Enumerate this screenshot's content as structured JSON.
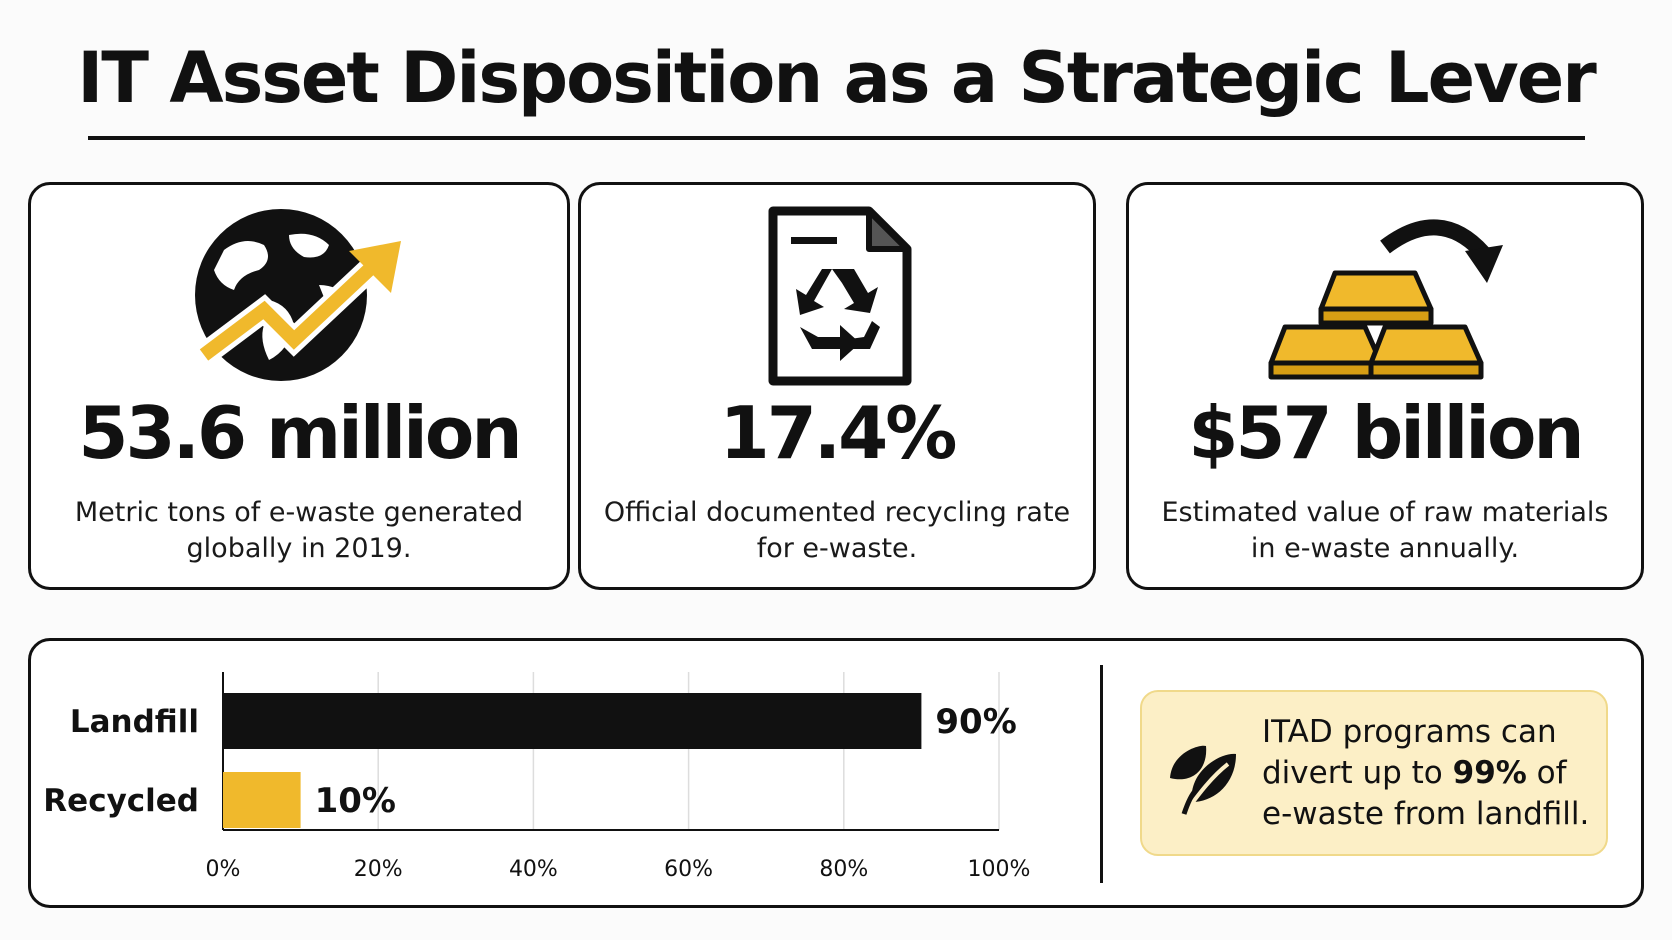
{
  "title": "IT Asset Disposition as a Strategic Lever",
  "colors": {
    "accent": "#f0b92c",
    "dark": "#111111",
    "callout_bg": "#fcefc6"
  },
  "cards": [
    {
      "icon": "globe-rising-arrow-icon",
      "stat": "53.6 million",
      "description": "Metric tons of e-waste generated globally in 2019."
    },
    {
      "icon": "recycle-document-icon",
      "stat": "17.4%",
      "description": "Official documented recycling rate for e-waste."
    },
    {
      "icon": "gold-bars-icon",
      "stat": "$57 billion",
      "description": "Estimated value of raw materials in e-waste annually."
    }
  ],
  "chart_data": {
    "type": "bar",
    "orientation": "horizontal",
    "categories": [
      "Landfill",
      "Recycled"
    ],
    "values": [
      90,
      10
    ],
    "value_labels": [
      "90%",
      "10%"
    ],
    "colors": [
      "#111111",
      "#f0b92c"
    ],
    "xlim": [
      0,
      100
    ],
    "xticks": [
      "0%",
      "20%",
      "40%",
      "60%",
      "80%",
      "100%"
    ],
    "grid": true
  },
  "callout": {
    "icon": "leaf-icon",
    "text_before": "ITAD programs can divert up to ",
    "highlight": "99%",
    "text_after": " of e-waste from landfill."
  }
}
